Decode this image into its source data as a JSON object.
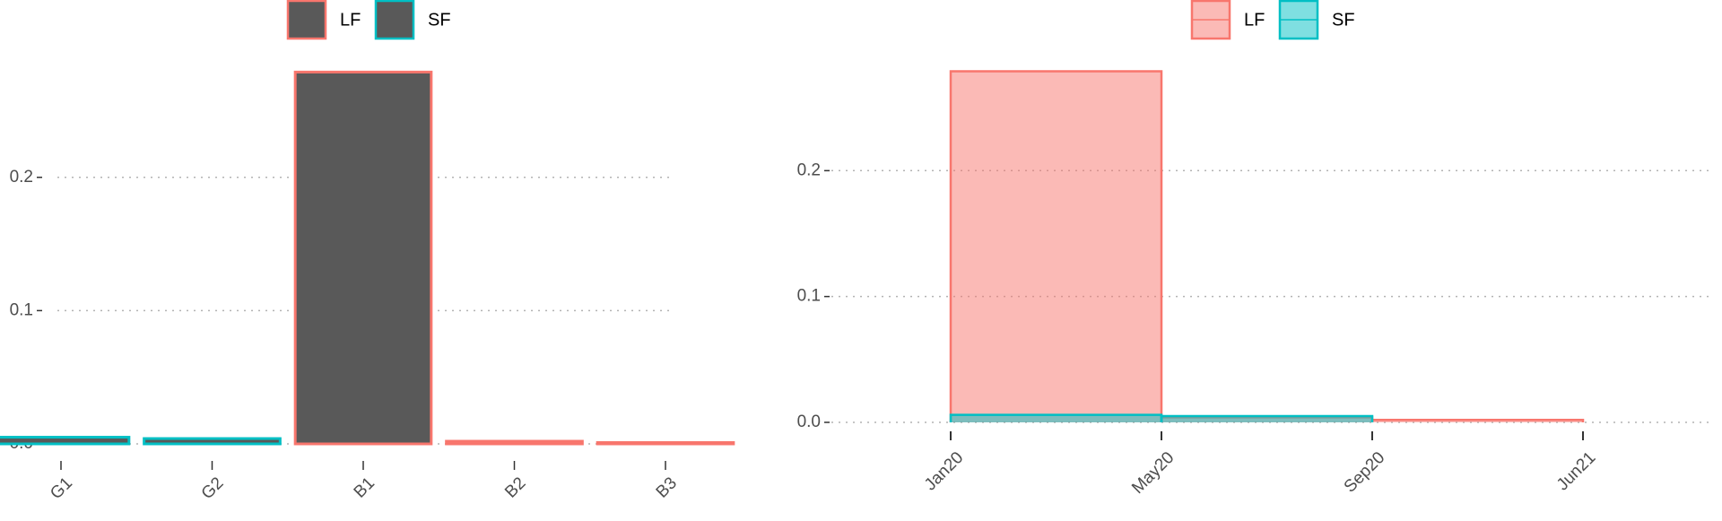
{
  "chart_data": [
    {
      "type": "bar",
      "categories": [
        "G1",
        "G2",
        "B1",
        "B2",
        "B3"
      ],
      "fill": "#595959",
      "series": [
        {
          "name": "LF",
          "color": "#F8766D",
          "values": [
            null,
            null,
            0.279,
            0.002,
            0.001
          ]
        },
        {
          "name": "SF",
          "color": "#00BFC4",
          "values": [
            0.005,
            0.004,
            null,
            null,
            null
          ]
        }
      ],
      "ylim": [
        0,
        0.29
      ],
      "yticks": [
        0.0,
        0.1,
        0.2
      ],
      "grid": true,
      "legend": "top"
    },
    {
      "type": "step-area",
      "categories": [
        "Jan20",
        "May20",
        "Sep20",
        "Jun21"
      ],
      "series": [
        {
          "name": "LF",
          "color": "#F8766D",
          "values": [
            0.279,
            0.004,
            0.002,
            null
          ]
        },
        {
          "name": "SF",
          "color": "#00BFC4",
          "values": [
            0.006,
            0.005,
            null,
            null
          ]
        }
      ],
      "ylim": [
        0,
        0.29
      ],
      "yticks": [
        0.0,
        0.1,
        0.2
      ],
      "grid": true,
      "legend": "top"
    }
  ]
}
